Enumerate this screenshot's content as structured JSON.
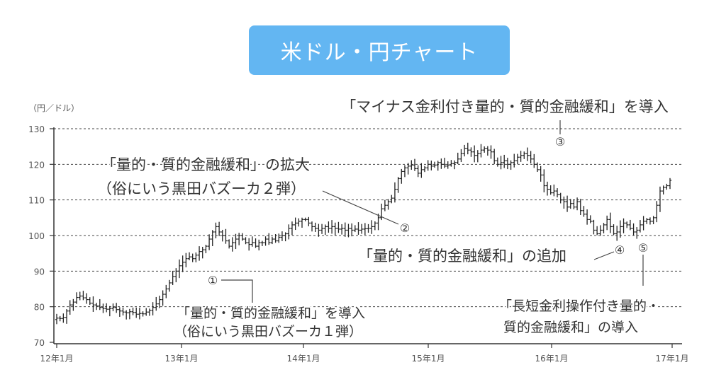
{
  "chart_data": {
    "type": "bar",
    "subtype": "ohlc",
    "title": "米ドル・円チャート",
    "ylabel": "（円／ドル）",
    "xlabel": "",
    "ylim": [
      70,
      130
    ],
    "yticks": [
      70,
      80,
      90,
      100,
      110,
      120,
      130
    ],
    "grid": true,
    "x_categories": [
      "12年1月",
      "13年1月",
      "14年1月",
      "15年1月",
      "16年1月",
      "17年1月"
    ],
    "weekly_close": [
      76.8,
      76.7,
      77.0,
      78.8,
      80.5,
      81.3,
      82.6,
      83.0,
      82.5,
      82.0,
      81.0,
      80.5,
      80.2,
      79.8,
      79.5,
      79.3,
      79.5,
      79.8,
      79.2,
      78.8,
      78.5,
      78.3,
      78.6,
      78.4,
      77.9,
      78.1,
      78.0,
      78.5,
      79.0,
      79.8,
      80.8,
      82.0,
      83.5,
      85.0,
      86.7,
      88.5,
      90.0,
      91.5,
      92.5,
      93.5,
      94.0,
      93.5,
      94.5,
      95.5,
      96.0,
      97.0,
      99.0,
      101.0,
      102.5,
      101.0,
      100.0,
      98.5,
      97.0,
      98.0,
      99.0,
      100.0,
      99.0,
      98.0,
      97.5,
      98.0,
      97.0,
      98.0,
      98.0,
      99.0,
      98.0,
      99.0,
      98.5,
      99.5,
      100.0,
      100.5,
      102.0,
      103.0,
      103.5,
      104.0,
      104.5,
      104.5,
      103.5,
      102.5,
      102.0,
      101.5,
      102.0,
      102.5,
      102.0,
      102.5,
      102.0,
      101.8,
      102.0,
      101.5,
      102.0,
      101.5,
      101.8,
      101.5,
      101.8,
      101.9,
      102.0,
      102.5,
      103.5,
      105.0,
      107.5,
      108.5,
      109.5,
      110.5,
      113.0,
      116.0,
      118.0,
      119.0,
      119.5,
      119.8,
      118.8,
      117.5,
      118.5,
      119.0,
      120.0,
      119.5,
      119.8,
      120.5,
      120.0,
      119.5,
      119.8,
      120.2,
      120.5,
      121.5,
      123.0,
      124.5,
      124.0,
      123.5,
      122.5,
      123.0,
      124.0,
      124.5,
      124.0,
      123.5,
      121.0,
      120.0,
      120.5,
      121.0,
      120.0,
      120.5,
      121.0,
      122.0,
      122.5,
      123.0,
      122.5,
      121.5,
      120.0,
      118.5,
      117.0,
      114.0,
      113.0,
      112.0,
      112.5,
      111.5,
      110.0,
      109.5,
      108.0,
      109.0,
      108.0,
      109.5,
      107.0,
      106.0,
      104.5,
      104.0,
      101.5,
      100.5,
      101.5,
      103.0,
      104.5,
      102.5,
      100.5,
      101.0,
      102.5,
      103.5,
      103.0,
      102.0,
      101.0,
      101.5,
      103.0,
      104.0,
      104.5,
      104.0,
      105.0,
      108.5,
      112.5,
      113.5,
      114.0,
      115.5
    ],
    "annotations": [
      {
        "id": "①",
        "text": [
          "「量的・質的金融緩和」を導入",
          "（俗にいう黒田バズーカ１弾）"
        ]
      },
      {
        "id": "②",
        "text": [
          "「量的・質的金融緩和」の拡大",
          "（俗にいう黒田バズーカ２弾）"
        ]
      },
      {
        "id": "③",
        "text": [
          "「マイナス金利付き量的・質的金融緩和」を導入"
        ]
      },
      {
        "id": "④",
        "text": [
          "「量的・質的金融緩和」の追加"
        ]
      },
      {
        "id": "⑤",
        "text": [
          "「長短金利操作付き量的・",
          "質的金融緩和」の導入"
        ]
      }
    ],
    "colors": {
      "title_bg": "#63b6f2",
      "bar": "#222222",
      "axis": "#333333",
      "grid": "#444444"
    }
  }
}
